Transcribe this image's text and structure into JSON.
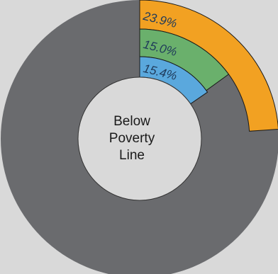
{
  "chart_data": {
    "type": "pie",
    "style": "concentric-radial-bars",
    "center_label": [
      "Below",
      "Poverty",
      "Line"
    ],
    "background_ring_color": "#6a6b6e",
    "center_circle_color": "#d9d9d9",
    "rings": [
      {
        "label": "23.9%",
        "value": 23.9,
        "color": "#f2a122"
      },
      {
        "label": "15.0%",
        "value": 15.0,
        "color": "#6ab06c"
      },
      {
        "label": "15.4%",
        "value": 15.4,
        "color": "#5aa8dd"
      }
    ],
    "legend": "none",
    "grid": false
  }
}
